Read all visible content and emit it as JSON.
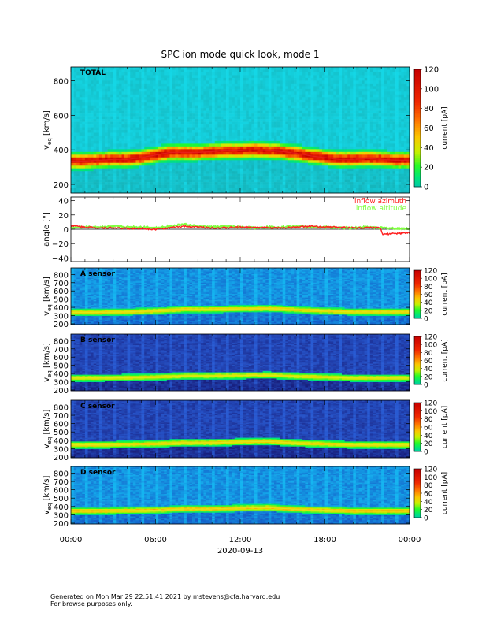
{
  "chart_data": {
    "type": "heatmap",
    "title": "SPC ion mode quick look, mode 1",
    "date": "2020-09-13",
    "x_ticks": [
      "00:00",
      "06:00",
      "12:00",
      "18:00",
      "00:00"
    ],
    "xlim_hours": [
      0,
      24
    ],
    "colorbar_label": "current [pA]",
    "colorbar_range": [
      0,
      120
    ],
    "colors": {
      "ridge": "#e82020",
      "inflow_azimuth": "#ff2020",
      "inflow_altitude": "#80ff40"
    },
    "panels": [
      {
        "kind": "spectrogram",
        "label": "TOTAL",
        "ylabel_main": "v",
        "ylabel_sub": "eq",
        "ylabel_unit": " [km/s]",
        "ylim": [
          150,
          880
        ],
        "y_ticks": [
          "200",
          "400",
          "600",
          "800"
        ],
        "y_tick_values": [
          200,
          400,
          600,
          800
        ],
        "cb_ticks": [
          "0",
          "20",
          "40",
          "60",
          "80",
          "100",
          "120"
        ],
        "cb_tick_values": [
          0,
          20,
          40,
          60,
          80,
          100,
          120
        ],
        "ridge_hours": [
          0,
          1,
          2,
          3,
          4,
          5,
          6,
          7,
          8,
          9,
          10,
          11,
          12,
          13,
          14,
          15,
          16,
          17,
          18,
          19,
          20,
          21,
          22,
          23,
          24
        ],
        "ridge_kms": [
          335,
          335,
          340,
          345,
          345,
          355,
          370,
          385,
          385,
          385,
          390,
          395,
          395,
          400,
          395,
          390,
          380,
          365,
          355,
          345,
          345,
          350,
          345,
          340,
          340
        ],
        "peak_current": 110,
        "background": "high"
      },
      {
        "kind": "angles",
        "ylabel": "angle [°]",
        "ylim": [
          -45,
          45
        ],
        "y_ticks": [
          "−40",
          "−20",
          "0",
          "20",
          "40"
        ],
        "y_tick_values": [
          -40,
          -20,
          0,
          20,
          40
        ],
        "legend": [
          "inflow azimuth",
          "inflow altitude"
        ],
        "azimuth_hours": [
          0,
          1,
          2,
          3,
          4,
          5,
          6,
          7,
          8,
          9,
          10,
          11,
          12,
          13,
          14,
          15,
          16,
          17,
          18,
          19,
          20,
          21,
          21.9,
          22.1,
          23,
          24
        ],
        "azimuth_deg": [
          5,
          3,
          2,
          2,
          1,
          1,
          0,
          2,
          4,
          3,
          2,
          2,
          3,
          3,
          2,
          2,
          3,
          4,
          3,
          3,
          2,
          2,
          2,
          -7,
          -6,
          -5
        ],
        "altitude_hours": [
          0,
          1,
          2,
          3,
          4,
          5,
          6,
          7,
          8,
          9,
          10,
          11,
          12,
          13,
          14,
          15,
          16,
          17,
          18,
          19,
          20,
          21,
          22,
          23,
          24
        ],
        "altitude_deg": [
          2,
          3,
          3,
          4,
          3,
          3,
          2,
          4,
          7,
          4,
          3,
          4,
          3,
          2,
          3,
          3,
          4,
          3,
          3,
          2,
          2,
          3,
          2,
          1,
          1
        ]
      },
      {
        "kind": "spectrogram",
        "label": "A sensor",
        "ylabel_main": "v",
        "ylabel_sub": "eq",
        "ylabel_unit": " [km/s]",
        "ylim": [
          190,
          880
        ],
        "y_ticks": [
          "200",
          "300",
          "400",
          "500",
          "600",
          "700",
          "800"
        ],
        "y_tick_values": [
          200,
          300,
          400,
          500,
          600,
          700,
          800
        ],
        "cb_ticks": [
          "0",
          "20",
          "40",
          "60",
          "80",
          "100",
          "120"
        ],
        "cb_tick_values": [
          0,
          20,
          40,
          60,
          80,
          100,
          120
        ],
        "ridge_hours": [
          0,
          2,
          4,
          6,
          8,
          10,
          12,
          14,
          16,
          18,
          20,
          22,
          24
        ],
        "ridge_kms": [
          340,
          340,
          345,
          355,
          375,
          375,
          380,
          385,
          370,
          355,
          345,
          345,
          345
        ],
        "peak_current": 50,
        "background": "low"
      },
      {
        "kind": "spectrogram",
        "label": "B sensor",
        "ylabel_main": "v",
        "ylabel_sub": "eq",
        "ylabel_unit": " [km/s]",
        "ylim": [
          190,
          880
        ],
        "y_ticks": [
          "200",
          "300",
          "400",
          "500",
          "600",
          "700",
          "800"
        ],
        "y_tick_values": [
          200,
          300,
          400,
          500,
          600,
          700,
          800
        ],
        "cb_ticks": [
          "0",
          "20",
          "40",
          "60",
          "80",
          "100",
          "120"
        ],
        "cb_tick_values": [
          0,
          20,
          40,
          60,
          80,
          100,
          120
        ],
        "ridge_hours": [
          0,
          2,
          4,
          6,
          8,
          10,
          12,
          14,
          16,
          18,
          20,
          22,
          24
        ],
        "ridge_kms": [
          345,
          345,
          350,
          355,
          370,
          370,
          375,
          380,
          365,
          355,
          345,
          345,
          345
        ],
        "peak_current": 45,
        "background": "dark"
      },
      {
        "kind": "spectrogram",
        "label": "C sensor",
        "ylabel_main": "v",
        "ylabel_sub": "eq",
        "ylabel_unit": " [km/s]",
        "ylim": [
          190,
          880
        ],
        "y_ticks": [
          "200",
          "300",
          "400",
          "500",
          "600",
          "700",
          "800"
        ],
        "y_tick_values": [
          200,
          300,
          400,
          500,
          600,
          700,
          800
        ],
        "cb_ticks": [
          "0",
          "20",
          "40",
          "60",
          "80",
          "100",
          "120"
        ],
        "cb_tick_values": [
          0,
          20,
          40,
          60,
          80,
          100,
          120
        ],
        "ridge_hours": [
          0,
          2,
          4,
          6,
          8,
          10,
          12,
          14,
          16,
          18,
          20,
          22,
          24
        ],
        "ridge_kms": [
          345,
          345,
          350,
          355,
          370,
          370,
          380,
          385,
          365,
          355,
          345,
          345,
          345
        ],
        "peak_current": 50,
        "background": "dark"
      },
      {
        "kind": "spectrogram",
        "label": "D sensor",
        "ylabel_main": "v",
        "ylabel_sub": "eq",
        "ylabel_unit": " [km/s]",
        "ylim": [
          190,
          880
        ],
        "y_ticks": [
          "200",
          "300",
          "400",
          "500",
          "600",
          "700",
          "800"
        ],
        "y_tick_values": [
          200,
          300,
          400,
          500,
          600,
          700,
          800
        ],
        "cb_ticks": [
          "0",
          "20",
          "40",
          "60",
          "80",
          "100",
          "120"
        ],
        "cb_tick_values": [
          0,
          20,
          40,
          60,
          80,
          100,
          120
        ],
        "ridge_hours": [
          0,
          2,
          4,
          6,
          8,
          10,
          12,
          14,
          16,
          18,
          20,
          22,
          24
        ],
        "ridge_kms": [
          345,
          345,
          350,
          355,
          370,
          370,
          380,
          385,
          365,
          355,
          345,
          345,
          345
        ],
        "peak_current": 55,
        "background": "low"
      }
    ]
  },
  "footer": {
    "line1": "Generated on Mon Mar 29 22:51:41 2021 by mstevens@cfa.harvard.edu",
    "line2": "For browse purposes only."
  }
}
